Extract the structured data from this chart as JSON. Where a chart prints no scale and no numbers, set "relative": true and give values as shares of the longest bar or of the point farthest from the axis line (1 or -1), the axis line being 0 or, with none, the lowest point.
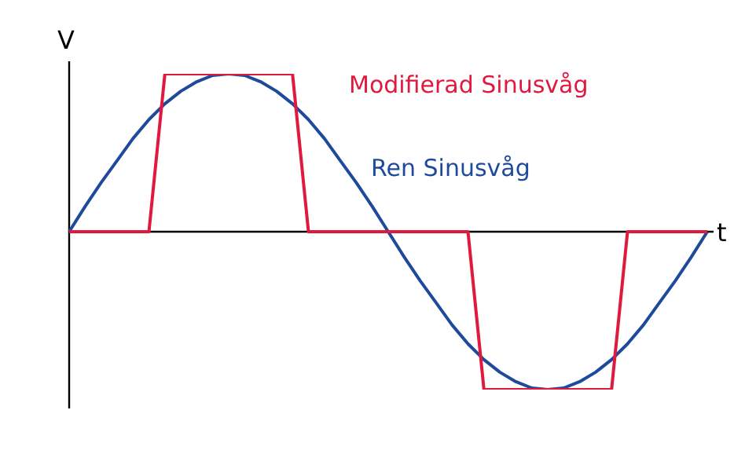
{
  "chart_data": {
    "type": "line",
    "relative": true,
    "xlabel": "t",
    "ylabel": "V",
    "legend": false,
    "marker": "none",
    "categories": [
      null,
      null,
      null,
      null,
      null,
      null,
      null,
      null,
      null,
      null,
      null,
      null,
      null,
      null,
      null,
      null,
      null,
      null,
      null,
      null,
      null,
      null,
      null,
      null,
      null,
      null,
      null,
      null,
      null,
      null,
      null,
      null,
      null,
      null,
      null,
      null,
      null,
      null,
      null,
      null,
      null
    ],
    "series": [
      {
        "name": "Modifierad Sinusvåg",
        "color": "#e0193f",
        "values": [
          0,
          0,
          0,
          0,
          0,
          0,
          1,
          1,
          1,
          1,
          1,
          1,
          1,
          1,
          1,
          0,
          0,
          0,
          0,
          0,
          0,
          0,
          0,
          0,
          0,
          0,
          -1,
          -1,
          -1,
          -1,
          -1,
          -1,
          -1,
          -1,
          -1,
          0,
          0,
          0,
          0,
          0,
          0
        ]
      },
      {
        "name": "Ren Sinusvåg",
        "color": "#1f4a9c",
        "values": [
          0,
          0.16,
          0.31,
          0.45,
          0.59,
          0.71,
          0.81,
          0.89,
          0.95,
          0.99,
          1,
          0.99,
          0.95,
          0.89,
          0.81,
          0.71,
          0.59,
          0.45,
          0.31,
          0.16,
          0,
          -0.16,
          -0.31,
          -0.45,
          -0.59,
          -0.71,
          -0.81,
          -0.89,
          -0.95,
          -0.99,
          -1,
          -0.99,
          -0.95,
          -0.89,
          -0.81,
          -0.71,
          -0.59,
          -0.45,
          -0.31,
          -0.16,
          0
        ]
      }
    ]
  }
}
